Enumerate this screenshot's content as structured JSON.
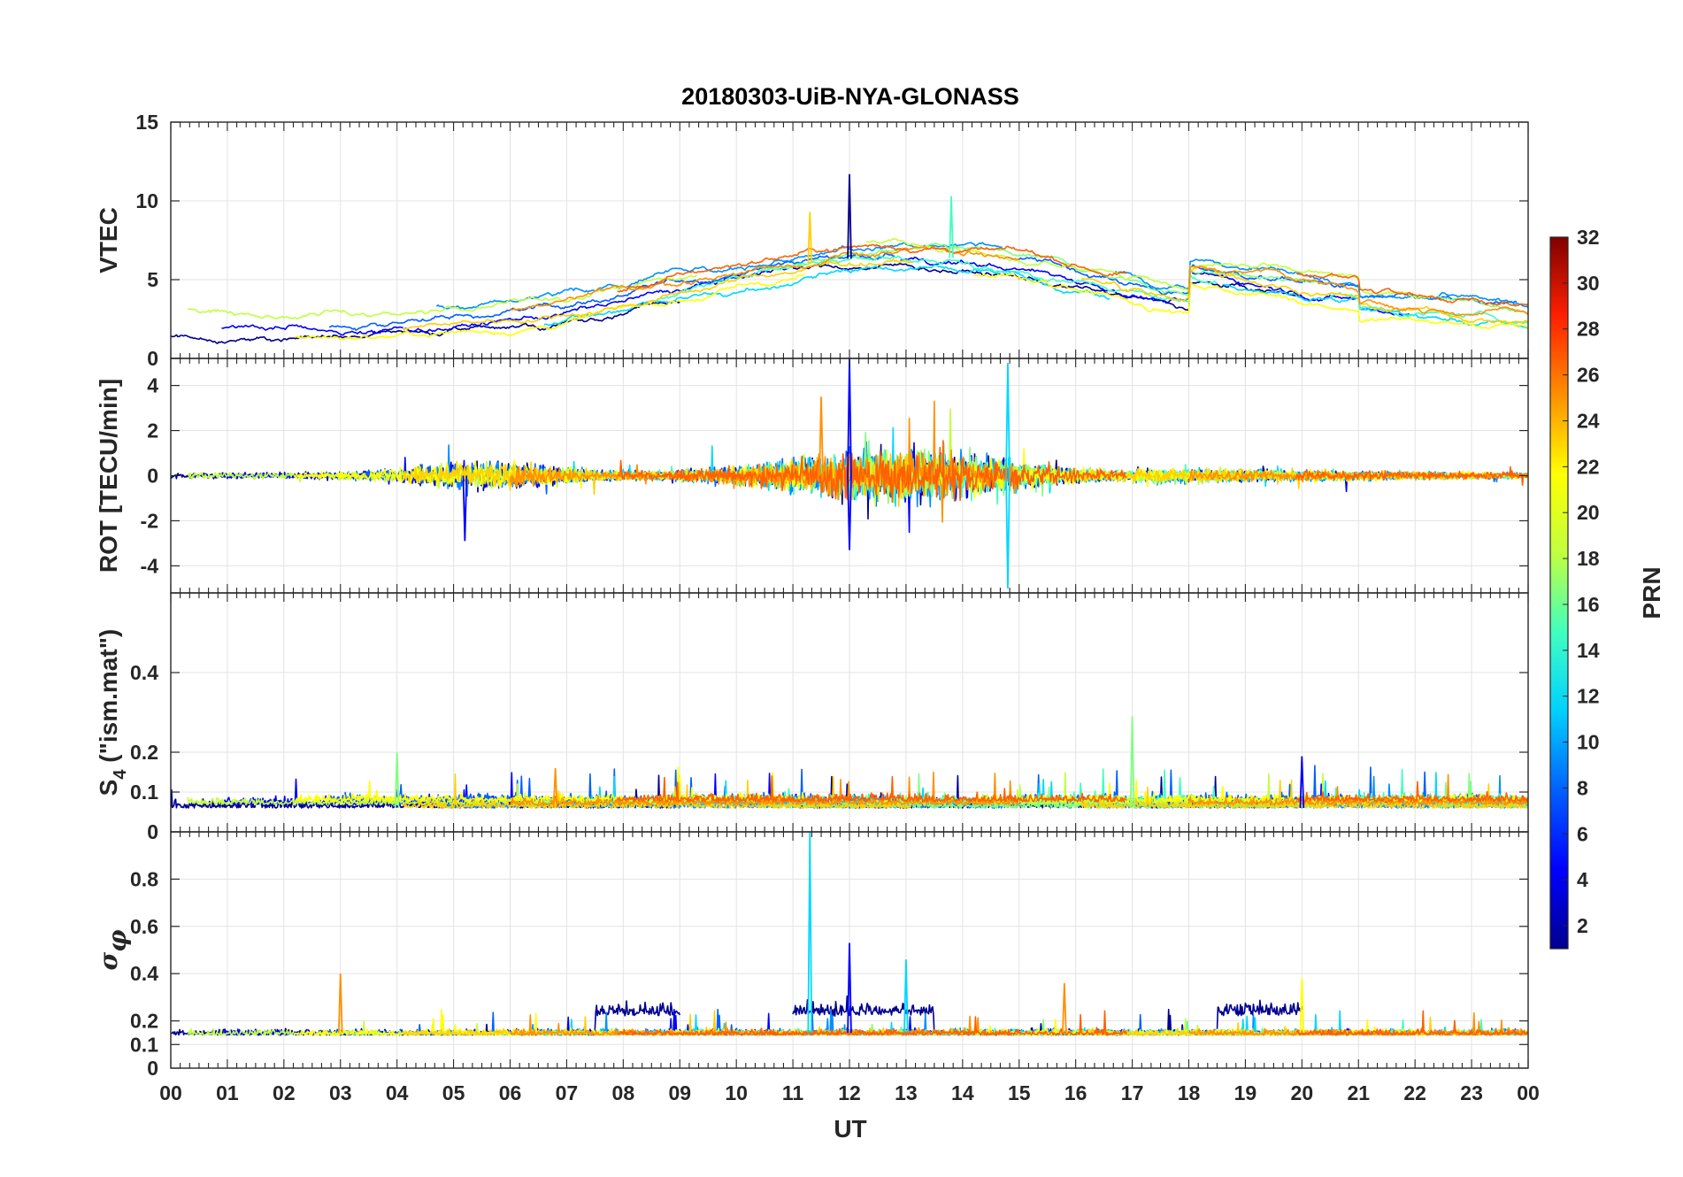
{
  "chart_data": {
    "type": "line",
    "title": "20180303-UiB-NYA-GLONASS",
    "xlabel": "UT",
    "x_ticks": [
      "00",
      "01",
      "02",
      "03",
      "04",
      "05",
      "06",
      "07",
      "08",
      "09",
      "10",
      "11",
      "12",
      "13",
      "14",
      "15",
      "16",
      "17",
      "18",
      "19",
      "20",
      "21",
      "22",
      "23",
      "00"
    ],
    "xlim": [
      0,
      24
    ],
    "grid": true,
    "panels": [
      {
        "id": "vtec",
        "ylabel": "VTEC",
        "ylim": [
          0,
          15
        ],
        "yticks": [
          0,
          5,
          10,
          15
        ],
        "description_series": "VTEC per satellite, rising from ~2 at 00 UT to ~6-8 around 11-16 UT and back to ~3 at 24 UT; spike ~11.7 at 12 UT; peak ~10.3 near 13.8 UT"
      },
      {
        "id": "rot",
        "ylabel": "ROT [TECU/min]",
        "ylim": [
          -5.2,
          5.2
        ],
        "yticks": [
          -4,
          -2,
          0,
          2,
          4
        ],
        "description_series": "ROT fluctuating around 0; largest spikes ~+5.2 at 12 UT and ~+5 / -5 near 14.8 UT"
      },
      {
        "id": "s4",
        "ylabel_main": "S",
        "ylabel_sub": "4",
        "ylabel_rest": " (\"ism.mat\")",
        "ylim": [
          0,
          0.6
        ],
        "yticks": [
          0,
          0.1,
          0.2,
          0.4
        ],
        "description_series": "S4 mostly 0.03-0.12; spikes ~0.29 near 17 UT and ~0.2 near 4 UT and 20 UT"
      },
      {
        "id": "sigma",
        "ylabel_main": "σ",
        "ylabel_sub": "φ",
        "ylim": [
          0,
          1
        ],
        "yticks": [
          0,
          0.1,
          0.2,
          0.4,
          0.6,
          0.8
        ],
        "description_series": "Sigma phi mostly 0.1-0.2; spike ~1.0 near 11.3 UT; ~0.53 at 12 UT; ~0.46 at 13 UT"
      }
    ],
    "series": [
      {
        "name": "2",
        "prn": 2,
        "color": "#00008f"
      },
      {
        "name": "5",
        "prn": 5,
        "color": "#0000ff"
      },
      {
        "name": "8",
        "prn": 8,
        "color": "#0060ff"
      },
      {
        "name": "10",
        "prn": 10,
        "color": "#0090ff"
      },
      {
        "name": "12",
        "prn": 12,
        "color": "#00d8ff"
      },
      {
        "name": "14",
        "prn": 14,
        "color": "#40ffbf"
      },
      {
        "name": "16",
        "prn": 16,
        "color": "#80ff80"
      },
      {
        "name": "18",
        "prn": 18,
        "color": "#c0ff40"
      },
      {
        "name": "20",
        "prn": 20,
        "color": "#ffff00"
      },
      {
        "name": "22",
        "prn": 22,
        "color": "#ffd000"
      },
      {
        "name": "24",
        "prn": 24,
        "color": "#ff9000"
      },
      {
        "name": "26",
        "prn": 26,
        "color": "#ff6000"
      }
    ],
    "colorbar": {
      "label": "PRN",
      "range": [
        1,
        32
      ],
      "ticks": [
        "2",
        "4",
        "6",
        "8",
        "10",
        "12",
        "14",
        "16",
        "18",
        "20",
        "22",
        "24",
        "26",
        "28",
        "30",
        "32"
      ],
      "colors": [
        "#00008f",
        "#0000ff",
        "#0060ff",
        "#00d0ff",
        "#40ffbf",
        "#c0ff40",
        "#ffff00",
        "#ff9000",
        "#ff2000",
        "#800000"
      ]
    }
  }
}
